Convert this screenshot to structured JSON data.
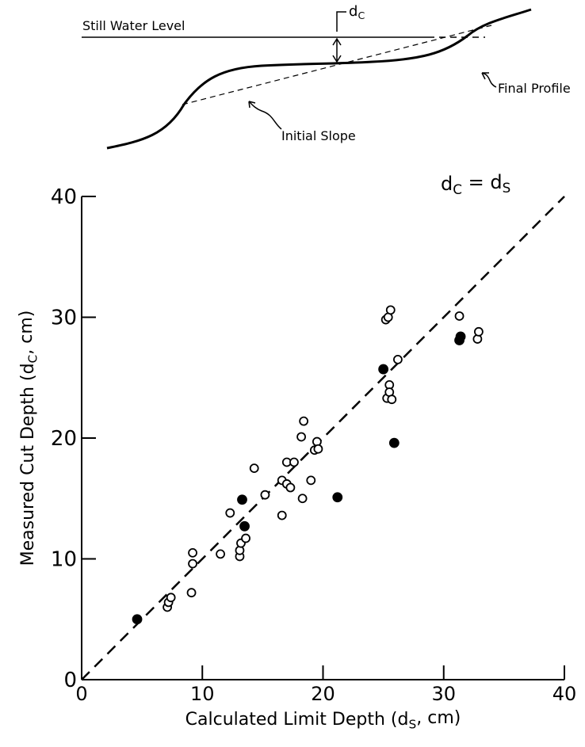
{
  "chart_data": {
    "type": "scatter",
    "diagram": {
      "water_label": "Still Water Level",
      "depth_label": [
        "d",
        "C"
      ],
      "profile_label": "Final Profile",
      "slope_label": "Initial Slope"
    },
    "line_label": [
      "d",
      "C",
      " = d",
      "S"
    ],
    "xlabel": [
      "Calculated Limit Depth (d",
      "S",
      ", cm)"
    ],
    "ylabel": [
      "Measured Cut Depth (d",
      "C",
      ", cm)"
    ],
    "xlim": [
      0,
      40
    ],
    "ylim": [
      0,
      40
    ],
    "xticks": [
      0,
      10,
      20,
      30,
      40
    ],
    "yticks": [
      0,
      10,
      20,
      30,
      40
    ],
    "color": "#000000",
    "series": [
      {
        "filled": false,
        "x": [
          7.1,
          7.2,
          7.4,
          9.1,
          9.2,
          9.2,
          11.5,
          12.3,
          13.1,
          13.1,
          13.2,
          13.6,
          14.3,
          15.2,
          16.6,
          16.6,
          17.0,
          17.0,
          17.3,
          17.6,
          18.3,
          18.2,
          18.4,
          19.0,
          19.3,
          19.5,
          19.6,
          25.2,
          25.4,
          25.6,
          25.3,
          25.5,
          25.5,
          25.7,
          26.2,
          31.3,
          32.8,
          32.9
        ],
        "values": [
          6.0,
          6.4,
          6.8,
          7.2,
          9.6,
          10.5,
          10.4,
          13.8,
          10.2,
          10.7,
          11.3,
          11.7,
          17.5,
          15.3,
          13.6,
          16.5,
          18.0,
          16.2,
          15.9,
          18.0,
          15.0,
          20.1,
          21.4,
          16.5,
          19.0,
          19.7,
          19.1,
          29.8,
          30.0,
          30.6,
          23.3,
          24.4,
          23.8,
          23.2,
          26.5,
          30.1,
          28.2,
          28.8
        ]
      },
      {
        "filled": true,
        "x": [
          4.6,
          13.3,
          13.5,
          21.2,
          25.0,
          25.9,
          31.3,
          31.4
        ],
        "values": [
          5.0,
          14.9,
          12.7,
          15.1,
          25.7,
          19.6,
          28.1,
          28.4
        ]
      }
    ]
  }
}
